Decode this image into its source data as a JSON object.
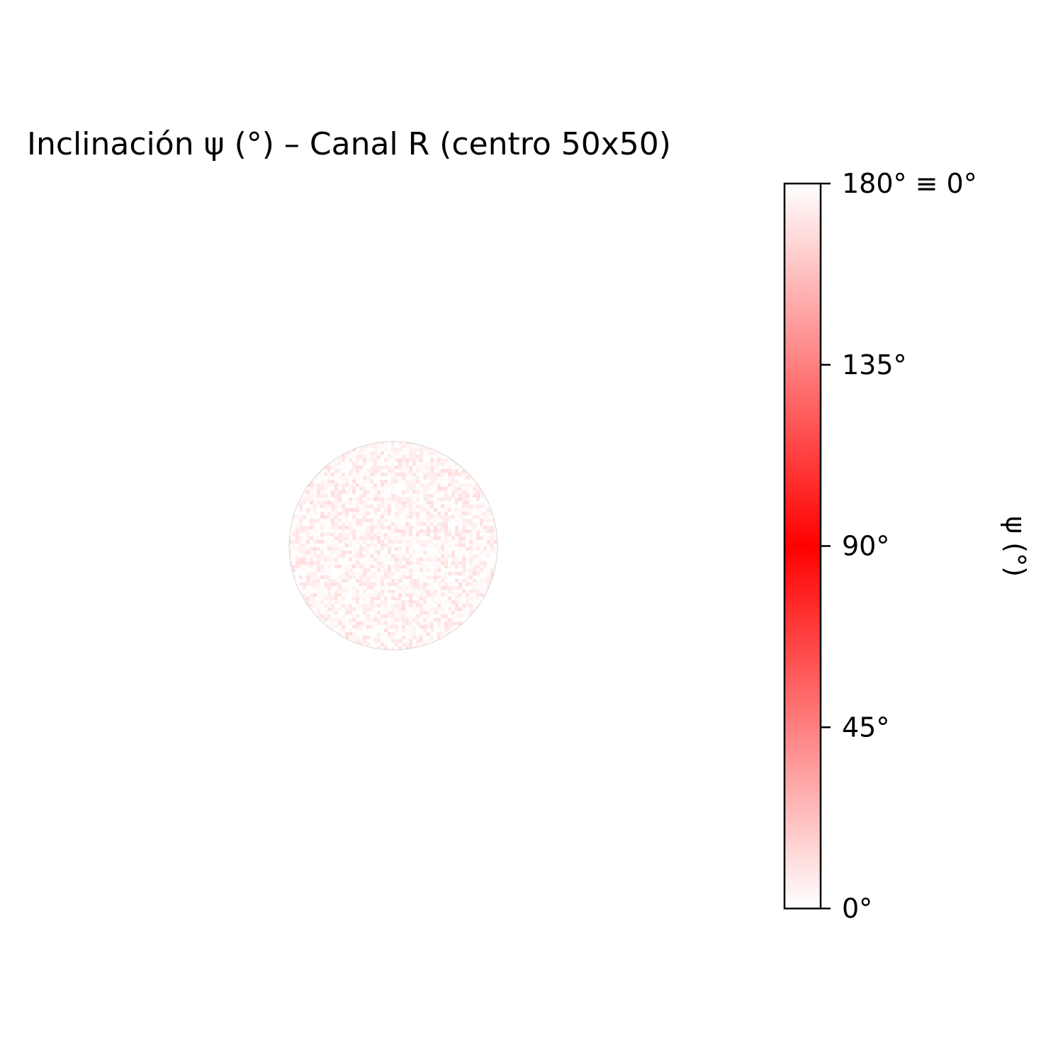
{
  "chart_data": {
    "type": "heatmap",
    "title": "Inclinación ψ (°) – Canal R (centro 50x50)",
    "region": "circular disk (masked to circle), noisy values near 0°/180°",
    "axes": "off",
    "colorbar": {
      "label": "ψ (°)",
      "range": [
        0,
        180
      ],
      "ticks": [
        {
          "value": 0,
          "label": "0°"
        },
        {
          "value": 45,
          "label": "45°"
        },
        {
          "value": 90,
          "label": "90°"
        },
        {
          "value": 135,
          "label": "135°"
        },
        {
          "value": 180,
          "label": "180° ≡ 0°"
        }
      ],
      "colormap": [
        {
          "value": 0,
          "color": "#ffffff"
        },
        {
          "value": 90,
          "color": "#ff0000"
        },
        {
          "value": 180,
          "color": "#ffffff"
        }
      ],
      "placement": "right"
    },
    "value_distribution": "values clustered near 0° and 180° (very pale red)"
  }
}
